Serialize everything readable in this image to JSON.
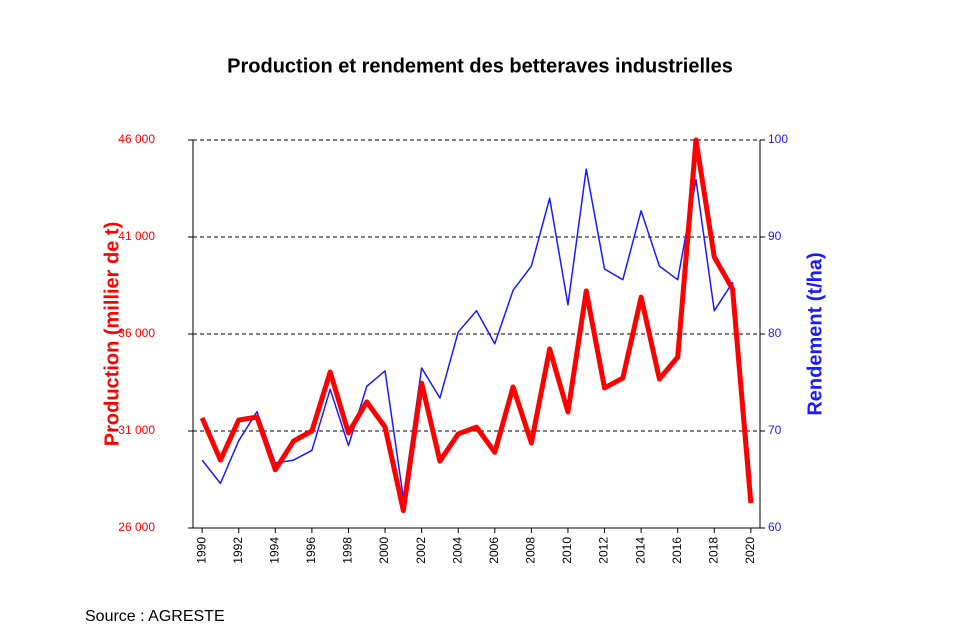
{
  "chart_data": {
    "type": "line",
    "title": "Production et rendement des betteraves industrielles",
    "y_label": "Production (millier de t)",
    "y2_label": "Rendement (t/ha)",
    "source": "Source : AGRESTE",
    "x": [
      1990,
      1991,
      1992,
      1993,
      1994,
      1995,
      1996,
      1997,
      1998,
      1999,
      2000,
      2001,
      2002,
      2003,
      2004,
      2005,
      2006,
      2007,
      2008,
      2009,
      2010,
      2011,
      2012,
      2013,
      2014,
      2015,
      2016,
      2017,
      2018,
      2019,
      2020
    ],
    "xlim": [
      1989.5,
      2020.5
    ],
    "xticks": [
      1990,
      1992,
      1994,
      1996,
      1998,
      2000,
      2002,
      2004,
      2006,
      2008,
      2010,
      2012,
      2014,
      2016,
      2018,
      2020
    ],
    "ylim": [
      26000,
      46000
    ],
    "yticks": [
      {
        "value": 26000,
        "label": "26 000"
      },
      {
        "value": 31000,
        "label": "31 000"
      },
      {
        "value": 36000,
        "label": "36 000"
      },
      {
        "value": 41000,
        "label": "41 000"
      },
      {
        "value": 46000,
        "label": "46 000"
      }
    ],
    "y2lim": [
      60,
      100
    ],
    "y2ticks": [
      60,
      70,
      80,
      90,
      100
    ],
    "grid": true,
    "series": [
      {
        "name": "Production",
        "color": "#ff0000",
        "values": [
          31670,
          29500,
          31570,
          31720,
          29000,
          30480,
          31000,
          34040,
          30900,
          32500,
          31200,
          26900,
          33470,
          29450,
          30850,
          31200,
          29900,
          33270,
          30380,
          35230,
          31980,
          38220,
          33220,
          33730,
          37900,
          33680,
          34810,
          46000,
          39970,
          38320,
          27290
        ]
      },
      {
        "name": "Rendement",
        "color": "#1a1aff",
        "axis": "y2",
        "values": [
          67.0,
          64.6,
          69.0,
          72.0,
          66.7,
          67.0,
          68.0,
          74.3,
          68.5,
          74.6,
          76.2,
          63.1,
          76.5,
          73.4,
          80.2,
          82.4,
          79.0,
          84.5,
          87.0,
          94.0,
          83.0,
          97.0,
          86.7,
          85.6,
          92.7,
          87.0,
          85.6,
          95.9,
          82.4,
          85.3,
          65.0
        ]
      }
    ]
  }
}
